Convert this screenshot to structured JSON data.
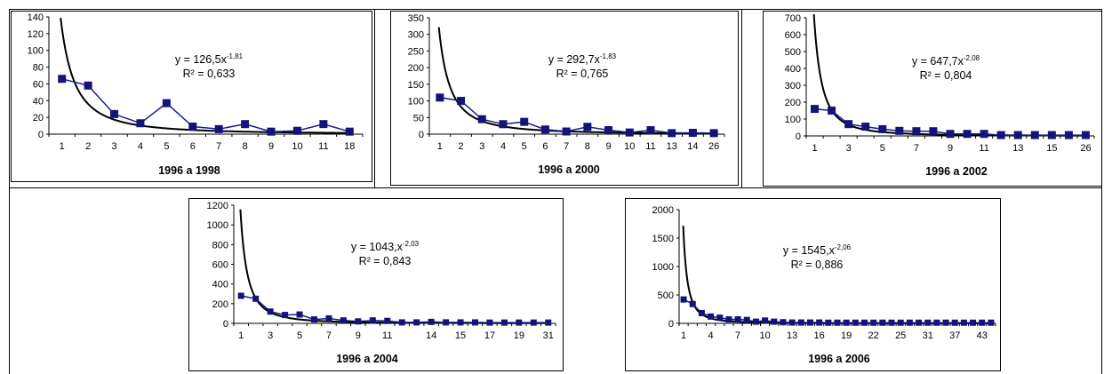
{
  "chart_data": [
    {
      "type": "scatter",
      "title": "1996 a 1998",
      "ylim": [
        0,
        140
      ],
      "yticks": [
        "0",
        "20",
        "40",
        "60",
        "80",
        "100",
        "120",
        "140"
      ],
      "categories": [
        "1",
        "2",
        "3",
        "4",
        "5",
        "6",
        "7",
        "8",
        "9",
        "10",
        "11",
        "18"
      ],
      "values": [
        66,
        58,
        24,
        13,
        37,
        9,
        6,
        12,
        3,
        4,
        12,
        3
      ],
      "fit": {
        "a": 126.5,
        "b": -1.81
      },
      "equation": {
        "base": "y = 126,5x",
        "exp": "-1,81"
      },
      "r2": "R² = 0,633"
    },
    {
      "type": "scatter",
      "title": "1996 a 2000",
      "ylim": [
        0,
        350
      ],
      "yticks": [
        "0",
        "50",
        "100",
        "150",
        "200",
        "250",
        "300",
        "350"
      ],
      "categories": [
        "1",
        "2",
        "3",
        "4",
        "5",
        "6",
        "7",
        "8",
        "9",
        "10",
        "11",
        "13",
        "14",
        "26"
      ],
      "values": [
        110,
        100,
        45,
        30,
        37,
        14,
        8,
        22,
        12,
        5,
        12,
        3,
        4,
        3
      ],
      "fit": {
        "a": 292.7,
        "b": -1.83
      },
      "equation": {
        "base": "y = 292,7x",
        "exp": "-1,83"
      },
      "r2": "R² = 0,765"
    },
    {
      "type": "scatter",
      "title": "1996 a 2002",
      "ylim": [
        0,
        700
      ],
      "yticks": [
        "0",
        "100",
        "200",
        "300",
        "400",
        "500",
        "600",
        "700"
      ],
      "categories": [
        "1",
        "",
        "3",
        "",
        "5",
        "",
        "7",
        "",
        "9",
        "",
        "11",
        "",
        "13",
        "",
        "15",
        "",
        "26"
      ],
      "values": [
        160,
        150,
        70,
        55,
        40,
        30,
        28,
        28,
        12,
        12,
        12,
        5,
        5,
        5,
        5,
        5,
        5
      ],
      "fit": {
        "a": 647.7,
        "b": -2.08
      },
      "equation": {
        "base": "y = 647,7x",
        "exp": "-2,08"
      },
      "r2": "R² = 0,804"
    },
    {
      "type": "scatter",
      "title": "1996 a 2004",
      "ylim": [
        0,
        1200
      ],
      "yticks": [
        "0",
        "200",
        "400",
        "600",
        "800",
        "1000",
        "1200"
      ],
      "categories": [
        "1",
        "",
        "3",
        "",
        "5",
        "",
        "7",
        "",
        "9",
        "",
        "11",
        "",
        "",
        "14",
        "",
        "15",
        "",
        "17",
        "",
        "19",
        "",
        "31"
      ],
      "values": [
        280,
        250,
        120,
        85,
        90,
        40,
        50,
        30,
        20,
        30,
        25,
        10,
        10,
        15,
        10,
        10,
        10,
        8,
        8,
        8,
        8,
        8
      ],
      "fit": {
        "a": 1043,
        "b": -2.03
      },
      "equation": {
        "base": "y = 1043,x",
        "exp": "-2,03"
      },
      "r2": "R² = 0,843"
    },
    {
      "type": "scatter",
      "title": "1996 a 2006",
      "ylim": [
        0,
        2000
      ],
      "yticks": [
        "0",
        "500",
        "1000",
        "1500",
        "2000"
      ],
      "categories": [
        "1",
        "",
        "",
        "4",
        "",
        "",
        "7",
        "",
        "",
        "10",
        "",
        "",
        "13",
        "",
        "",
        "16",
        "",
        "",
        "19",
        "",
        "",
        "22",
        "",
        "",
        "25",
        "",
        "",
        "31",
        "",
        "",
        "37",
        "",
        "",
        "43",
        ""
      ],
      "values": [
        420,
        340,
        180,
        120,
        100,
        70,
        70,
        60,
        30,
        50,
        30,
        20,
        15,
        15,
        15,
        15,
        12,
        12,
        12,
        12,
        12,
        12,
        12,
        12,
        12,
        12,
        12,
        12,
        12,
        12,
        12,
        12,
        12,
        12,
        12
      ],
      "fit": {
        "a": 1545,
        "b": -2.06
      },
      "equation": {
        "base": "y = 1545,x",
        "exp": "-2,06"
      },
      "r2": "R² = 0,886"
    }
  ],
  "style": {
    "series_color": "#1c1c8c",
    "marker_color": "#13137a",
    "fit_color": "#000000"
  }
}
